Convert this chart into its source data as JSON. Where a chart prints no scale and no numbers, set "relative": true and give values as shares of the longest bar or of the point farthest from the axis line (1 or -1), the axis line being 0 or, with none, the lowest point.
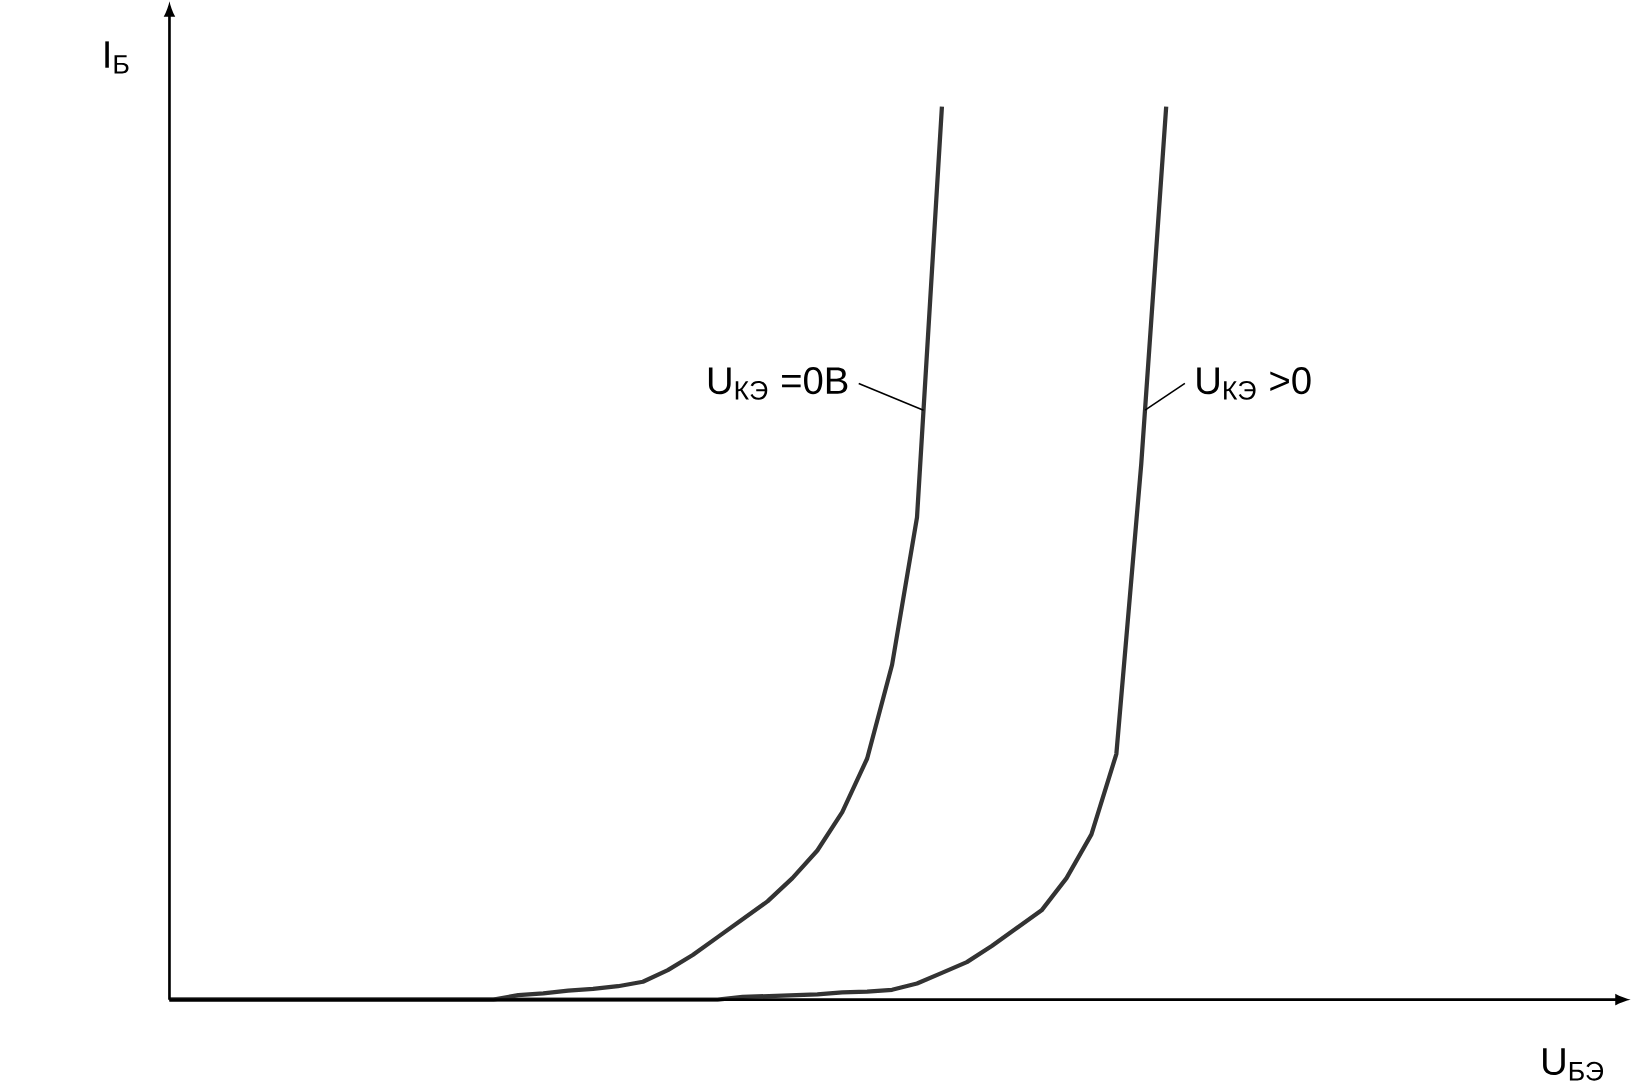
{
  "chart_data": {
    "type": "line",
    "relative": true,
    "xlabel": "U$_{БЭ}$",
    "ylabel": "I$_{Б}$",
    "categories": [
      null,
      null,
      null,
      null,
      null,
      null,
      null,
      null,
      null,
      null,
      null,
      null,
      null,
      null,
      null,
      null,
      null,
      null,
      null,
      null,
      null,
      null,
      null,
      null,
      null,
      null,
      null,
      null,
      null,
      null,
      null,
      null,
      null,
      null,
      null,
      null,
      null,
      null,
      null,
      null,
      null,
      null,
      null,
      null,
      null,
      null,
      null,
      null,
      null,
      null,
      null,
      null,
      null,
      null,
      null,
      null,
      null,
      null,
      null
    ],
    "series": [
      {
        "name": "U$_{КЭ}$ =0В",
        "color": "#333333",
        "values": [
          0,
          0,
          0,
          0,
          0,
          0,
          0,
          0,
          0,
          0,
          0,
          0,
          0,
          0,
          0.005,
          0.007,
          0.01,
          0.012,
          0.015,
          0.02,
          0.033,
          0.05,
          0.07,
          0.09,
          0.11,
          0.136,
          0.167,
          0.21,
          0.27,
          0.375,
          0.54,
          1,
          null,
          null,
          null,
          null,
          null,
          null,
          null,
          null,
          null,
          null,
          null,
          null,
          null,
          null,
          null,
          null,
          null,
          null,
          null,
          null,
          null,
          null,
          null,
          null,
          null,
          null,
          null
        ]
      },
      {
        "name": "U$_{КЭ}$ >0",
        "color": "#333333",
        "values": [
          0,
          0,
          0,
          0,
          0,
          0,
          0,
          0,
          0,
          0,
          0,
          0,
          0,
          0,
          0,
          0,
          0,
          0,
          0,
          0,
          0,
          0,
          0,
          0.003,
          0.004,
          0.005,
          0.006,
          0.008,
          0.009,
          0.011,
          0.018,
          0.03,
          0.042,
          0.06,
          0.08,
          0.1,
          0.136,
          0.185,
          0.275,
          0.6,
          1,
          null,
          null,
          null,
          null,
          null,
          null,
          null,
          null,
          null,
          null,
          null,
          null,
          null,
          null,
          null,
          null,
          null,
          null
        ]
      }
    ]
  }
}
